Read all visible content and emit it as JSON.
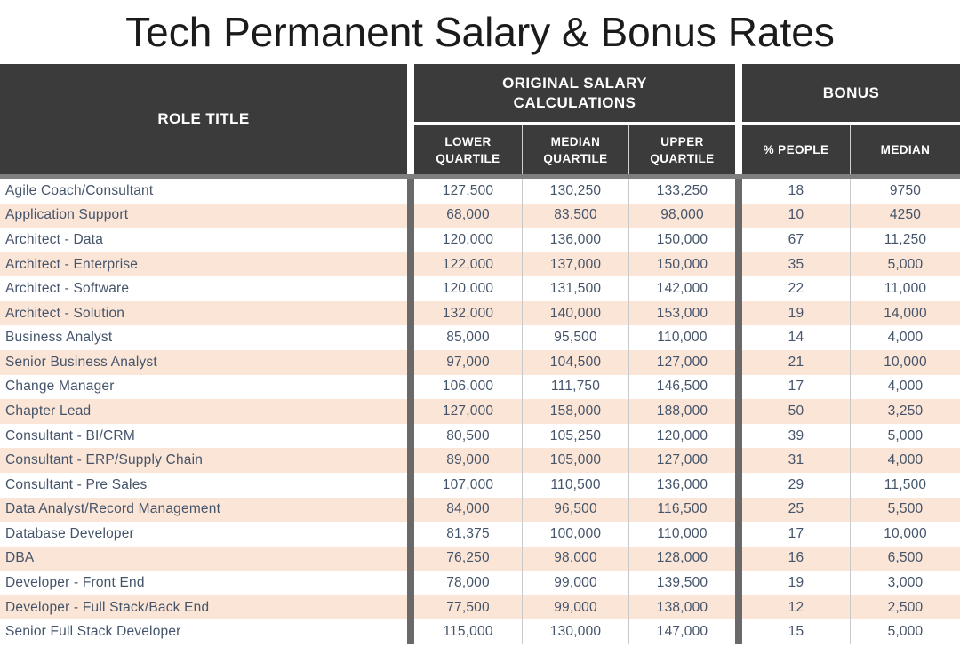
{
  "title": "Tech Permanent Salary & Bonus Rates",
  "table": {
    "headers": {
      "role": "ROLE TITLE",
      "salary_group": "ORIGINAL SALARY CALCULATIONS",
      "bonus_group": "BONUS",
      "lower": "LOWER QUARTILE",
      "median": "MEDIAN QUARTILE",
      "upper": "UPPER QUARTILE",
      "people": "% PEOPLE",
      "bonus_median": "MEDIAN"
    },
    "rows": [
      {
        "role": "Agile Coach/Consultant",
        "lower": "127,500",
        "median": "130,250",
        "upper": "133,250",
        "people": "18",
        "bonus_median": "9750"
      },
      {
        "role": "Application Support",
        "lower": "68,000",
        "median": "83,500",
        "upper": "98,000",
        "people": "10",
        "bonus_median": "4250"
      },
      {
        "role": "Architect - Data",
        "lower": "120,000",
        "median": "136,000",
        "upper": "150,000",
        "people": "67",
        "bonus_median": "11,250"
      },
      {
        "role": "Architect - Enterprise",
        "lower": "122,000",
        "median": "137,000",
        "upper": "150,000",
        "people": "35",
        "bonus_median": "5,000"
      },
      {
        "role": "Architect - Software",
        "lower": "120,000",
        "median": "131,500",
        "upper": "142,000",
        "people": "22",
        "bonus_median": "11,000"
      },
      {
        "role": "Architect - Solution",
        "lower": "132,000",
        "median": "140,000",
        "upper": "153,000",
        "people": "19",
        "bonus_median": "14,000"
      },
      {
        "role": "Business Analyst",
        "lower": "85,000",
        "median": "95,500",
        "upper": "110,000",
        "people": "14",
        "bonus_median": "4,000"
      },
      {
        "role": "Senior Business Analyst",
        "lower": "97,000",
        "median": "104,500",
        "upper": "127,000",
        "people": "21",
        "bonus_median": "10,000"
      },
      {
        "role": "Change Manager",
        "lower": "106,000",
        "median": "111,750",
        "upper": "146,500",
        "people": "17",
        "bonus_median": "4,000"
      },
      {
        "role": "Chapter Lead",
        "lower": "127,000",
        "median": "158,000",
        "upper": "188,000",
        "people": "50",
        "bonus_median": "3,250"
      },
      {
        "role": "Consultant - BI/CRM",
        "lower": "80,500",
        "median": "105,250",
        "upper": "120,000",
        "people": "39",
        "bonus_median": "5,000"
      },
      {
        "role": "Consultant - ERP/Supply Chain",
        "lower": "89,000",
        "median": "105,000",
        "upper": "127,000",
        "people": "31",
        "bonus_median": "4,000"
      },
      {
        "role": "Consultant - Pre Sales",
        "lower": "107,000",
        "median": "110,500",
        "upper": "136,000",
        "people": "29",
        "bonus_median": "11,500"
      },
      {
        "role": "Data Analyst/Record Management",
        "lower": "84,000",
        "median": "96,500",
        "upper": "116,500",
        "people": "25",
        "bonus_median": "5,500"
      },
      {
        "role": "Database Developer",
        "lower": "81,375",
        "median": "100,000",
        "upper": "110,000",
        "people": "17",
        "bonus_median": "10,000"
      },
      {
        "role": "DBA",
        "lower": "76,250",
        "median": "98,000",
        "upper": "128,000",
        "people": "16",
        "bonus_median": "6,500"
      },
      {
        "role": "Developer - Front End",
        "lower": "78,000",
        "median": "99,000",
        "upper": "139,500",
        "people": "19",
        "bonus_median": "3,000"
      },
      {
        "role": "Developer - Full Stack/Back End",
        "lower": "77,500",
        "median": "99,000",
        "upper": "138,000",
        "people": "12",
        "bonus_median": "2,500"
      },
      {
        "role": "Senior Full Stack Developer",
        "lower": "115,000",
        "median": "130,000",
        "upper": "147,000",
        "people": "15",
        "bonus_median": "5,000"
      }
    ]
  },
  "colors": {
    "header_bg": "#3b3b3b",
    "row_alt": "#fbe5d6",
    "body_text": "#44546a",
    "separator_bar": "#696969",
    "header_underline": "#7f7f7f"
  }
}
